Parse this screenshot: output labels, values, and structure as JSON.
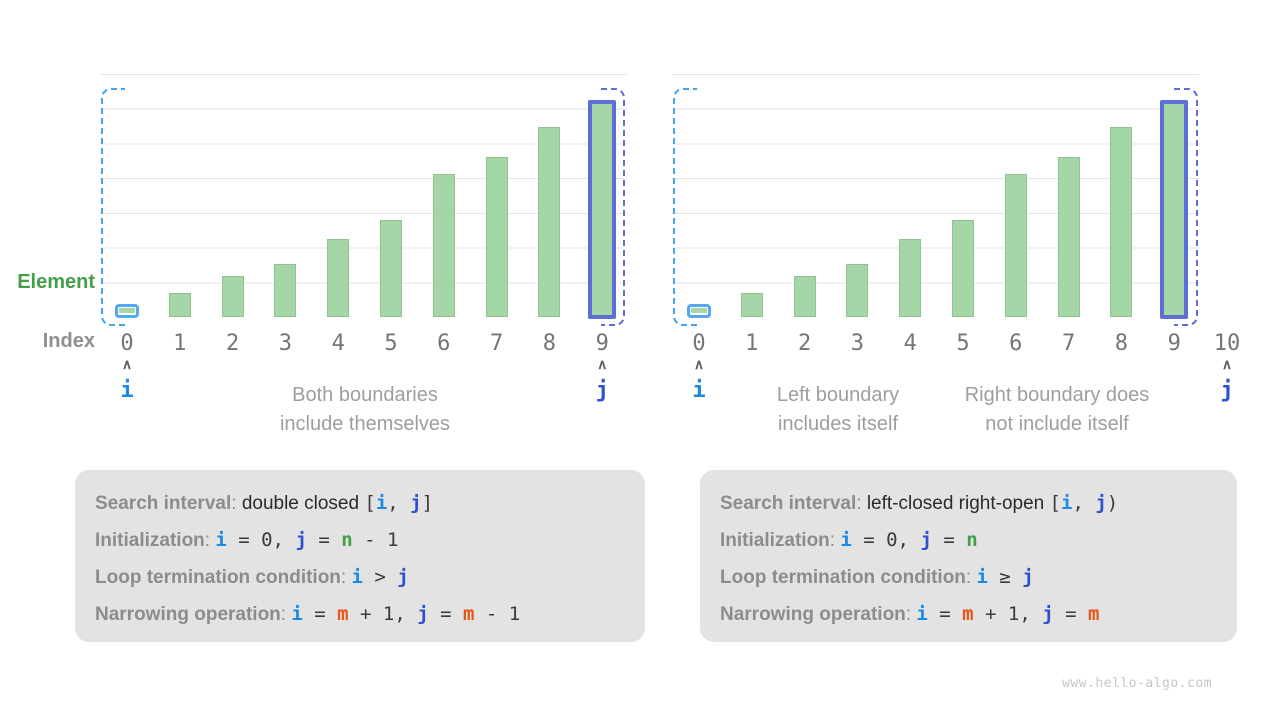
{
  "watermark": "www.hello-algo.com",
  "axis": {
    "element_label": "Element",
    "index_label": "Index"
  },
  "colors": {
    "bar_fill": "#A5D6A7",
    "i_pointer": "#1E88E5",
    "j_pointer": "#2F50D2",
    "n_var": "#43A047",
    "m_var": "#EA5315",
    "bracket_left": "#42A5F5",
    "bracket_right": "#5B6FD6",
    "element_label": "#43A047",
    "gray_text": "#9E9E9E",
    "box_bg": "#E3E3E3"
  },
  "chart_data": [
    {
      "type": "bar",
      "name": "double-closed-interval",
      "categories": [
        "0",
        "1",
        "2",
        "3",
        "4",
        "5",
        "6",
        "7",
        "8",
        "9"
      ],
      "values_pct": [
        3,
        10,
        17,
        22,
        32,
        40,
        59,
        66,
        78,
        90
      ],
      "ylabel": "Element",
      "xlabel": "Index",
      "grid": true,
      "pointers": {
        "i": {
          "index": 0,
          "label": "i"
        },
        "j": {
          "index": 9,
          "label": "j"
        }
      },
      "highlight": {
        "i_bar": 0,
        "j_bar": 9
      },
      "captions": [
        [
          "Both boundaries",
          "include themselves"
        ]
      ],
      "info_lines": [
        [
          {
            "t": "Search interval",
            "s": "label"
          },
          {
            "t": ": ",
            "s": "sep"
          },
          {
            "t": "double closed ",
            "s": "plain"
          },
          {
            "t": "[",
            "s": "code"
          },
          {
            "t": "i",
            "s": "i"
          },
          {
            "t": ", ",
            "s": "code"
          },
          {
            "t": "j",
            "s": "j"
          },
          {
            "t": "]",
            "s": "code"
          }
        ],
        [
          {
            "t": "Initialization",
            "s": "label"
          },
          {
            "t": ": ",
            "s": "sep"
          },
          {
            "t": "i",
            "s": "i"
          },
          {
            "t": " = 0, ",
            "s": "code"
          },
          {
            "t": "j",
            "s": "j"
          },
          {
            "t": " = ",
            "s": "code"
          },
          {
            "t": "n",
            "s": "n"
          },
          {
            "t": " - 1",
            "s": "code"
          }
        ],
        [
          {
            "t": "Loop termination condition",
            "s": "label"
          },
          {
            "t": ": ",
            "s": "sep"
          },
          {
            "t": "i",
            "s": "i"
          },
          {
            "t": " > ",
            "s": "code"
          },
          {
            "t": "j",
            "s": "j"
          }
        ],
        [
          {
            "t": "Narrowing operation",
            "s": "label"
          },
          {
            "t": ": ",
            "s": "sep"
          },
          {
            "t": "i",
            "s": "i"
          },
          {
            "t": " = ",
            "s": "code"
          },
          {
            "t": "m",
            "s": "m"
          },
          {
            "t": " + 1, ",
            "s": "code"
          },
          {
            "t": "j",
            "s": "j"
          },
          {
            "t": " = ",
            "s": "code"
          },
          {
            "t": "m",
            "s": "m"
          },
          {
            "t": " - 1",
            "s": "code"
          }
        ]
      ]
    },
    {
      "type": "bar",
      "name": "left-closed-right-open-interval",
      "categories": [
        "0",
        "1",
        "2",
        "3",
        "4",
        "5",
        "6",
        "7",
        "8",
        "9",
        "10"
      ],
      "values_pct": [
        3,
        10,
        17,
        22,
        32,
        40,
        59,
        66,
        78,
        90
      ],
      "ylabel": "Element",
      "xlabel": "Index",
      "grid": true,
      "pointers": {
        "i": {
          "index": 0,
          "label": "i"
        },
        "j": {
          "index": 10,
          "label": "j"
        }
      },
      "highlight": {
        "i_bar": 0,
        "j_bar": 9
      },
      "captions": [
        [
          "Left boundary",
          "includes itself"
        ],
        [
          "Right boundary does",
          "not include itself"
        ]
      ],
      "info_lines": [
        [
          {
            "t": "Search interval",
            "s": "label"
          },
          {
            "t": ": ",
            "s": "sep"
          },
          {
            "t": "left-closed right-open ",
            "s": "plain"
          },
          {
            "t": "[",
            "s": "code"
          },
          {
            "t": "i",
            "s": "i"
          },
          {
            "t": ", ",
            "s": "code"
          },
          {
            "t": "j",
            "s": "j"
          },
          {
            "t": ")",
            "s": "code"
          }
        ],
        [
          {
            "t": "Initialization",
            "s": "label"
          },
          {
            "t": ": ",
            "s": "sep"
          },
          {
            "t": "i",
            "s": "i"
          },
          {
            "t": " = 0, ",
            "s": "code"
          },
          {
            "t": "j",
            "s": "j"
          },
          {
            "t": " = ",
            "s": "code"
          },
          {
            "t": "n",
            "s": "n"
          }
        ],
        [
          {
            "t": "Loop termination condition",
            "s": "label"
          },
          {
            "t": ": ",
            "s": "sep"
          },
          {
            "t": "i",
            "s": "i"
          },
          {
            "t": " ≥ ",
            "s": "code"
          },
          {
            "t": "j",
            "s": "j"
          }
        ],
        [
          {
            "t": "Narrowing operation",
            "s": "label"
          },
          {
            "t": ": ",
            "s": "sep"
          },
          {
            "t": "i",
            "s": "i"
          },
          {
            "t": " = ",
            "s": "code"
          },
          {
            "t": "m",
            "s": "m"
          },
          {
            "t": " + 1, ",
            "s": "code"
          },
          {
            "t": "j",
            "s": "j"
          },
          {
            "t": " = ",
            "s": "code"
          },
          {
            "t": "m",
            "s": "m"
          }
        ]
      ]
    }
  ]
}
